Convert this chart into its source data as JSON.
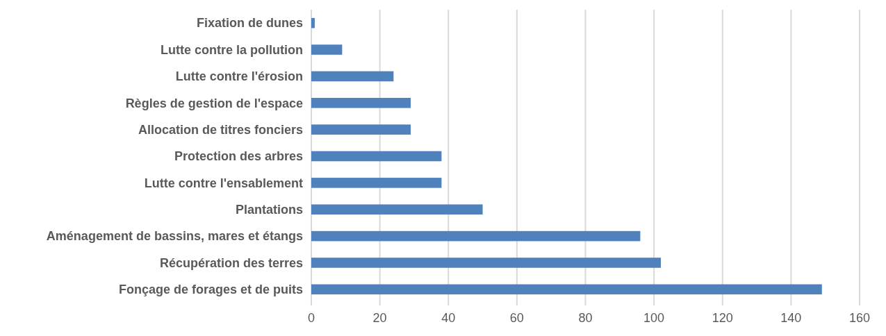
{
  "chart_data": {
    "type": "bar",
    "orientation": "horizontal",
    "categories": [
      "Fixation de dunes",
      "Lutte contre la pollution",
      "Lutte contre l'érosion",
      "Règles de gestion de l'espace",
      "Allocation de titres fonciers",
      "Protection des arbres",
      "Lutte contre l'ensablement",
      "Plantations",
      "Aménagement de bassins, mares et étangs",
      "Récupération des terres",
      "Fonçage de forages et de puits"
    ],
    "values": [
      1,
      9,
      24,
      29,
      29,
      38,
      38,
      50,
      96,
      102,
      149
    ],
    "color": "#4f81bd",
    "xlim": [
      0,
      160
    ],
    "xticks": [
      0,
      20,
      40,
      60,
      80,
      100,
      120,
      140,
      160
    ],
    "grid": "x"
  }
}
